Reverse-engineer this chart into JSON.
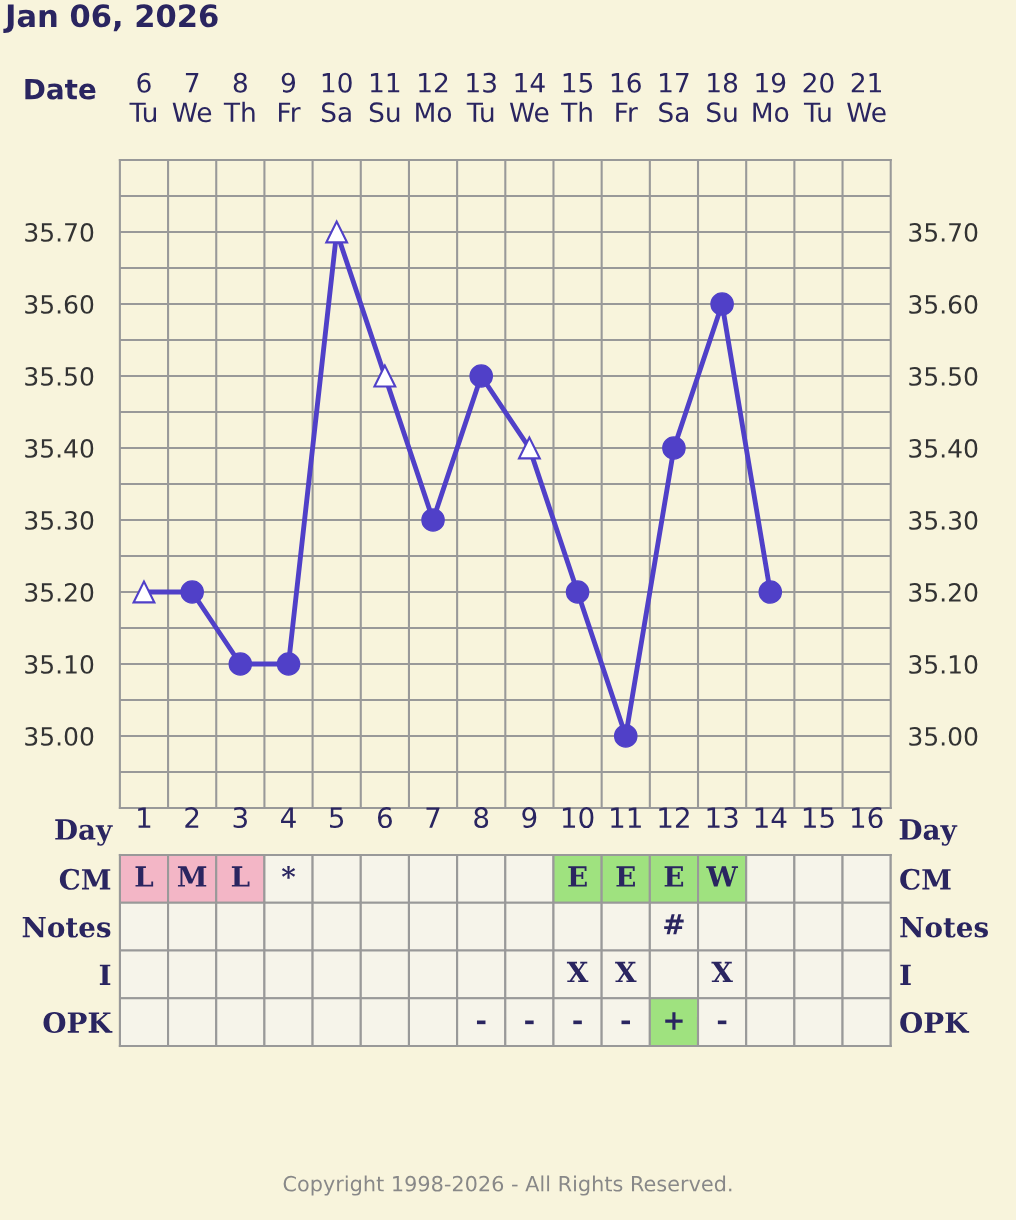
{
  "chart_data": [
    {
      "type": "line",
      "title": "Jan 06, 2026",
      "xlabel": "Date",
      "categories": [
        "6\nTu",
        "7\nWe",
        "8\nTh",
        "9\nFr",
        "10\nSa",
        "11\nSu",
        "12\nMo",
        "13\nTu",
        "14\nWe",
        "15\nTh",
        "16\nFr",
        "17\nSa",
        "18\nSu",
        "19\nMo",
        "20\nTu",
        "21\nWe"
      ],
      "series": [
        {
          "type": "line",
          "color": "#5040c8",
          "marker": "none",
          "values": [
            35.2,
            35.2,
            35.1,
            35.1,
            35.7,
            35.5,
            35.3,
            35.5,
            35.4,
            35.2,
            35.0,
            35.4,
            35.6,
            35.2,
            null,
            null
          ]
        },
        {
          "type": "scatter",
          "color": "#5040c8",
          "marker": "triangle",
          "values": [
            35.2,
            null,
            null,
            null,
            35.7,
            35.5,
            null,
            null,
            35.4,
            null,
            null,
            null,
            null,
            null,
            null,
            null
          ]
        },
        {
          "type": "scatter",
          "color": "#5040c8",
          "marker": "circle",
          "values": [
            null,
            35.2,
            35.1,
            35.1,
            null,
            null,
            35.3,
            35.5,
            null,
            35.2,
            35.0,
            35.4,
            35.6,
            35.2,
            null,
            null
          ]
        }
      ],
      "ylim": [
        34.9,
        35.8
      ],
      "yticks": [
        {
          "value": 34.95,
          "label": null
        },
        {
          "value": 35.0,
          "label": "35.00"
        },
        {
          "value": 35.05,
          "label": null
        },
        {
          "value": 35.1,
          "label": "35.10"
        },
        {
          "value": 35.15,
          "label": null
        },
        {
          "value": 35.2,
          "label": "35.20"
        },
        {
          "value": 35.25,
          "label": null
        },
        {
          "value": 35.3,
          "label": "35.30"
        },
        {
          "value": 35.35,
          "label": null
        },
        {
          "value": 35.4,
          "label": "35.40"
        },
        {
          "value": 35.45,
          "label": null
        },
        {
          "value": 35.5,
          "label": "35.50"
        },
        {
          "value": 35.55,
          "label": null
        },
        {
          "value": 35.6,
          "label": "35.60"
        },
        {
          "value": 35.65,
          "label": null
        },
        {
          "value": 35.7,
          "label": "35.70"
        },
        {
          "value": 35.75,
          "label": null
        }
      ],
      "y2lim": [
        34.9,
        35.8
      ],
      "y2ticks": [
        {
          "value": 35.0,
          "label": "35.00"
        },
        {
          "value": 35.1,
          "label": "35.10"
        },
        {
          "value": 35.2,
          "label": "35.20"
        },
        {
          "value": 35.3,
          "label": "35.30"
        },
        {
          "value": 35.4,
          "label": "35.40"
        },
        {
          "value": 35.5,
          "label": "35.50"
        },
        {
          "value": 35.6,
          "label": "35.60"
        },
        {
          "value": 35.7,
          "label": "35.70"
        }
      ],
      "grid": true
    },
    {
      "type": "heatmap",
      "xlabel": "Day",
      "categories": [
        "1",
        "2",
        "3",
        "4",
        "5",
        "6",
        "7",
        "8",
        "9",
        "10",
        "11",
        "12",
        "13",
        "14",
        "15",
        "16"
      ],
      "y_categories": [
        "CM",
        "Notes",
        "I",
        "OPK"
      ],
      "y2_categories": [
        "CM",
        "Notes",
        "I",
        "OPK"
      ],
      "cells": [
        [
          null,
          null,
          null,
          null,
          null,
          null,
          null,
          null,
          null,
          null,
          null,
          null,
          null,
          null,
          null,
          null
        ],
        [
          null,
          null,
          null,
          null,
          null,
          null,
          null,
          null,
          null,
          null,
          null,
          null,
          null,
          null,
          null,
          null
        ],
        [
          null,
          null,
          null,
          null,
          null,
          null,
          null,
          null,
          null,
          null,
          null,
          null,
          null,
          null,
          null,
          null
        ],
        [
          null,
          null,
          null,
          null,
          null,
          null,
          null,
          null,
          null,
          null,
          null,
          null,
          null,
          null,
          null,
          null
        ]
      ],
      "cell_labels": [
        [
          "L",
          "M",
          "L",
          "*",
          null,
          null,
          null,
          null,
          null,
          "E",
          "E",
          "E",
          "W",
          null,
          null,
          null
        ],
        [
          null,
          null,
          null,
          null,
          null,
          null,
          null,
          null,
          null,
          null,
          null,
          "#",
          null,
          null,
          null,
          null
        ],
        [
          null,
          null,
          null,
          null,
          null,
          null,
          null,
          null,
          null,
          "X",
          "X",
          null,
          "X",
          null,
          null,
          null
        ],
        [
          null,
          null,
          null,
          null,
          null,
          null,
          null,
          "-",
          "-",
          "-",
          "-",
          "+",
          "-",
          null,
          null,
          null
        ]
      ],
      "colors": [
        [
          "#f3b6c6",
          "#f3b6c6",
          "#f3b6c6",
          null,
          null,
          null,
          null,
          null,
          null,
          "#9fe27f",
          "#9fe27f",
          "#9fe27f",
          "#9fe27f",
          null,
          null,
          null
        ],
        [
          null,
          null,
          null,
          null,
          null,
          null,
          null,
          null,
          null,
          null,
          null,
          null,
          null,
          null,
          null,
          null
        ],
        [
          null,
          null,
          null,
          null,
          null,
          null,
          null,
          null,
          null,
          null,
          null,
          null,
          null,
          null,
          null,
          null
        ],
        [
          null,
          null,
          null,
          null,
          null,
          null,
          null,
          null,
          null,
          null,
          null,
          "#9fe27f",
          null,
          null,
          null,
          null
        ]
      ],
      "annotations": [
        "Copyright 1998-2026 - All Rights Reserved."
      ]
    }
  ]
}
